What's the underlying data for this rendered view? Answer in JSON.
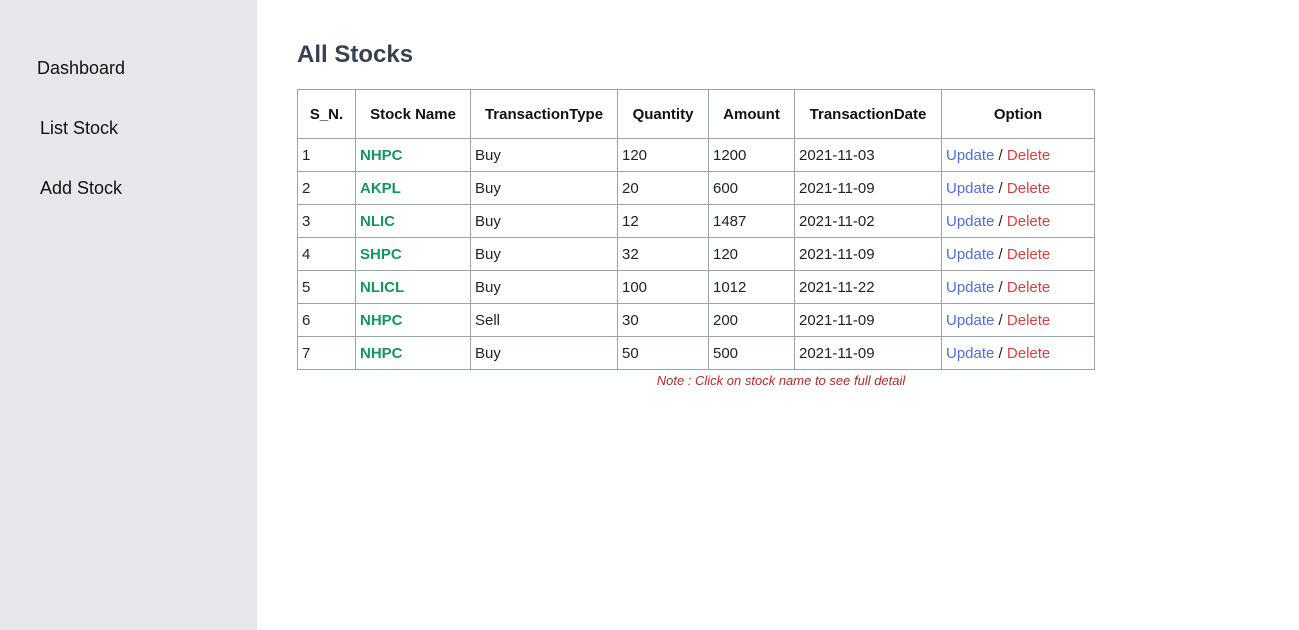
{
  "sidebar": {
    "items": [
      {
        "label": "Dashboard"
      },
      {
        "label": "List Stock"
      },
      {
        "label": "Add Stock"
      }
    ]
  },
  "main": {
    "title": "All Stocks",
    "table": {
      "headers": [
        "S_N.",
        "Stock Name",
        "TransactionType",
        "Quantity",
        "Amount",
        "TransactionDate",
        "Option"
      ],
      "rows": [
        {
          "sn": "1",
          "name": "NHPC",
          "type": "Buy",
          "qty": "120",
          "amount": "1200",
          "date": "2021-11-03"
        },
        {
          "sn": "2",
          "name": "AKPL",
          "type": "Buy",
          "qty": "20",
          "amount": "600",
          "date": "2021-11-09"
        },
        {
          "sn": "3",
          "name": "NLIC",
          "type": "Buy",
          "qty": "12",
          "amount": "1487",
          "date": "2021-11-02"
        },
        {
          "sn": "4",
          "name": "SHPC",
          "type": "Buy",
          "qty": "32",
          "amount": "120",
          "date": "2021-11-09"
        },
        {
          "sn": "5",
          "name": "NLICL",
          "type": "Buy",
          "qty": "100",
          "amount": "1012",
          "date": "2021-11-22"
        },
        {
          "sn": "6",
          "name": "NHPC",
          "type": "Sell",
          "qty": "30",
          "amount": "200",
          "date": "2021-11-09"
        },
        {
          "sn": "7",
          "name": "NHPC",
          "type": "Buy",
          "qty": "50",
          "amount": "500",
          "date": "2021-11-09"
        }
      ],
      "update_label": "Update",
      "delete_label": "Delete",
      "separator": "/"
    },
    "note": "Note : Click on stock name to see full detail"
  },
  "colors": {
    "sidebar_bg": "#e5e7eb",
    "stock_name": "#16955e",
    "update_link": "#4f6fd6",
    "delete_link": "#d04343",
    "note": "#b02b2b"
  }
}
